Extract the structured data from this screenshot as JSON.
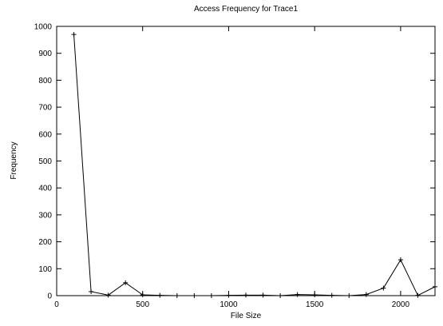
{
  "chart_data": {
    "type": "line",
    "title": "Access Frequency for Trace1",
    "x_label": "File Size",
    "y_label": "Frequency",
    "x": [
      100,
      200,
      300,
      400,
      500,
      600,
      700,
      800,
      900,
      1000,
      1100,
      1200,
      1300,
      1400,
      1500,
      1600,
      1700,
      1800,
      1900,
      2000,
      2100,
      2200
    ],
    "values": [
      970,
      15,
      2,
      48,
      3,
      1,
      0,
      0,
      0,
      1,
      2,
      2,
      0,
      4,
      3,
      1,
      0,
      4,
      28,
      133,
      1,
      33
    ],
    "color": "#000000",
    "xlim": [
      0,
      2200
    ],
    "xticks": [
      0,
      500,
      1000,
      1500,
      2000
    ],
    "ylim": [
      0,
      1000
    ],
    "yticks": [
      0,
      100,
      200,
      300,
      400,
      500,
      600,
      700,
      800,
      900,
      1000
    ]
  }
}
